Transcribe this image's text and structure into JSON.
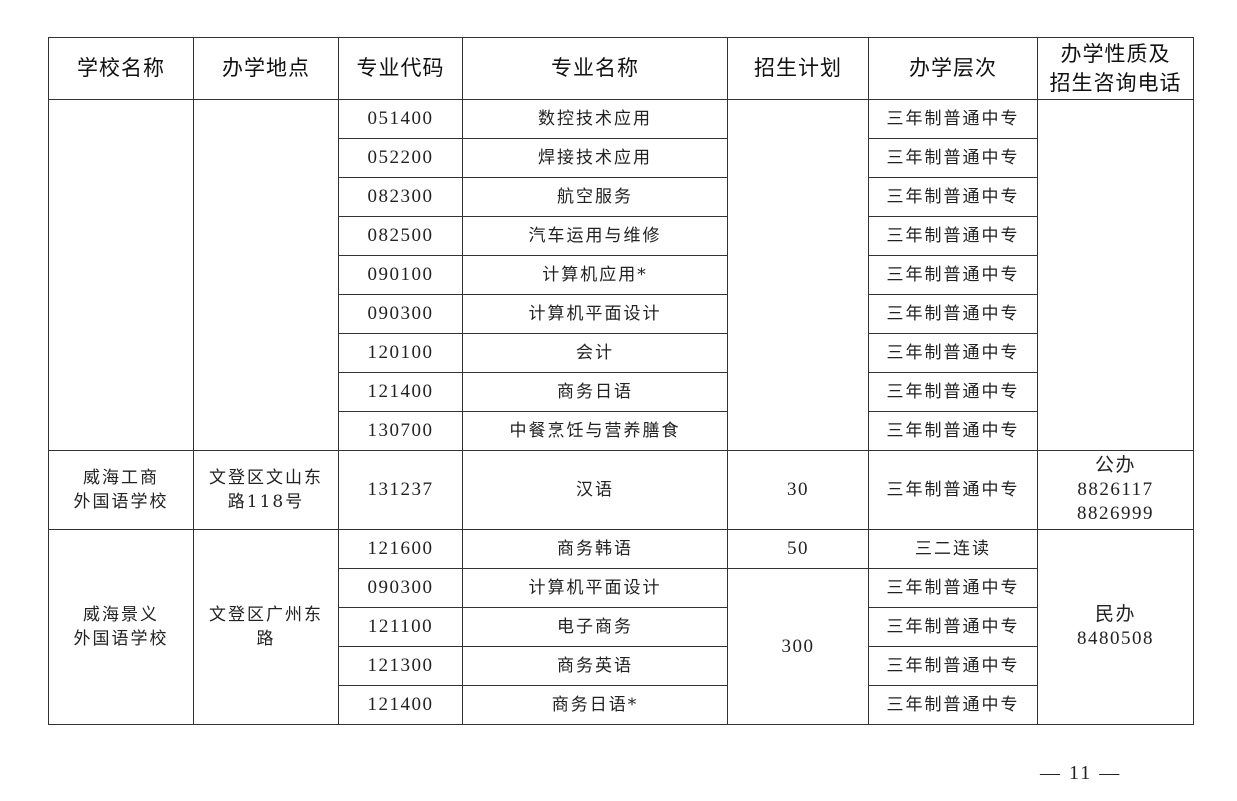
{
  "headers": [
    "学校名称",
    "办学地点",
    "专业代码",
    "专业名称",
    "招生计划",
    "办学层次",
    "办学性质及\n招生咨询电话"
  ],
  "groups": [
    {
      "school": "",
      "location": "",
      "nature": [],
      "rows": [
        {
          "code": "051400",
          "name": "数控技术应用",
          "level": "三年制普通中专",
          "plan": ""
        },
        {
          "code": "052200",
          "name": "焊接技术应用",
          "level": "三年制普通中专"
        },
        {
          "code": "082300",
          "name": "航空服务",
          "level": "三年制普通中专"
        },
        {
          "code": "082500",
          "name": "汽车运用与维修",
          "level": "三年制普通中专"
        },
        {
          "code": "090100",
          "name": "计算机应用*",
          "level": "三年制普通中专"
        },
        {
          "code": "090300",
          "name": "计算机平面设计",
          "level": "三年制普通中专"
        },
        {
          "code": "120100",
          "name": "会计",
          "level": "三年制普通中专"
        },
        {
          "code": "121400",
          "name": "商务日语",
          "level": "三年制普通中专"
        },
        {
          "code": "130700",
          "name": "中餐烹饪与营养膳食",
          "level": "三年制普通中专"
        }
      ]
    },
    {
      "school": "威海工商\n外国语学校",
      "location": "文登区文山东\n路118号",
      "nature": [
        "公办",
        "8826117",
        "8826999"
      ],
      "rows": [
        {
          "code": "131237",
          "name": "汉语",
          "level": "三年制普通中专",
          "plan": "30"
        }
      ]
    },
    {
      "school": "威海景义\n外国语学校",
      "location": "文登区广州东\n路",
      "nature": [
        "民办",
        "8480508"
      ],
      "rows": [
        {
          "code": "121600",
          "name": "商务韩语",
          "level": "三二连读",
          "plan": "50"
        },
        {
          "code": "090300",
          "name": "计算机平面设计",
          "level": "三年制普通中专",
          "plan": "300"
        },
        {
          "code": "121100",
          "name": "电子商务",
          "level": "三年制普通中专"
        },
        {
          "code": "121300",
          "name": "商务英语",
          "level": "三年制普通中专"
        },
        {
          "code": "121400",
          "name": "商务日语*",
          "level": "三年制普通中专"
        }
      ]
    }
  ],
  "page_number": "— 11 —"
}
